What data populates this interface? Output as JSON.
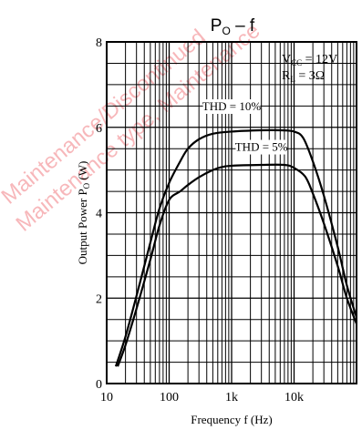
{
  "watermark": {
    "lines": [
      "Maintenance/Discontinued",
      "Maintenance type, Maintenance"
    ],
    "color": "#e8323a"
  },
  "colors": {
    "line": "#000000",
    "grid": "#000000",
    "background": "#ffffff"
  },
  "chart_data": {
    "type": "line",
    "title": "P",
    "title_sub": "O",
    "title_suffix": " – f",
    "xlabel": "Frequency f (Hz)",
    "ylabel_main": "Output Power P",
    "ylabel_sub": "O",
    "ylabel_unit": " (W)",
    "x_scale": "log",
    "xlim": [
      10,
      100000
    ],
    "ylim": [
      0,
      8
    ],
    "x_ticks": [
      {
        "value": 10,
        "label": "10"
      },
      {
        "value": 100,
        "label": "100"
      },
      {
        "value": 1000,
        "label": "1k"
      },
      {
        "value": 10000,
        "label": "10k"
      }
    ],
    "y_ticks": [
      {
        "value": 0,
        "label": "0"
      },
      {
        "value": 2,
        "label": "2"
      },
      {
        "value": 4,
        "label": "4"
      },
      {
        "value": 6,
        "label": "6"
      },
      {
        "value": 8,
        "label": "8"
      }
    ],
    "grid": true,
    "conditions": [
      {
        "main": "V",
        "sub": "CC",
        "rest": " = 12V"
      },
      {
        "main": "R",
        "sub": "L",
        "rest": " = 3Ω"
      }
    ],
    "series": [
      {
        "name": "THD = 10%",
        "label_at": {
          "x": 1000,
          "y": 6.4
        },
        "points": [
          [
            14,
            0.4
          ],
          [
            20,
            1.1
          ],
          [
            30,
            2.05
          ],
          [
            50,
            3.3
          ],
          [
            70,
            4.1
          ],
          [
            100,
            4.7
          ],
          [
            150,
            5.2
          ],
          [
            200,
            5.5
          ],
          [
            300,
            5.72
          ],
          [
            500,
            5.85
          ],
          [
            1000,
            5.9
          ],
          [
            3000,
            5.93
          ],
          [
            6000,
            5.93
          ],
          [
            10000,
            5.9
          ],
          [
            14000,
            5.75
          ],
          [
            20000,
            5.2
          ],
          [
            30000,
            4.4
          ],
          [
            50000,
            3.2
          ],
          [
            70000,
            2.3
          ],
          [
            100000,
            1.55
          ]
        ]
      },
      {
        "name": "THD = 5%",
        "label_at": {
          "x": 3000,
          "y": 5.45
        },
        "points": [
          [
            15,
            0.4
          ],
          [
            20,
            0.9
          ],
          [
            30,
            1.75
          ],
          [
            50,
            2.9
          ],
          [
            70,
            3.7
          ],
          [
            100,
            4.3
          ],
          [
            150,
            4.5
          ],
          [
            200,
            4.65
          ],
          [
            300,
            4.83
          ],
          [
            500,
            5.0
          ],
          [
            700,
            5.07
          ],
          [
            1000,
            5.1
          ],
          [
            3000,
            5.12
          ],
          [
            7000,
            5.12
          ],
          [
            10000,
            5.05
          ],
          [
            15000,
            4.85
          ],
          [
            20000,
            4.45
          ],
          [
            30000,
            3.75
          ],
          [
            50000,
            2.75
          ],
          [
            70000,
            2.0
          ],
          [
            100000,
            1.4
          ]
        ]
      }
    ]
  }
}
